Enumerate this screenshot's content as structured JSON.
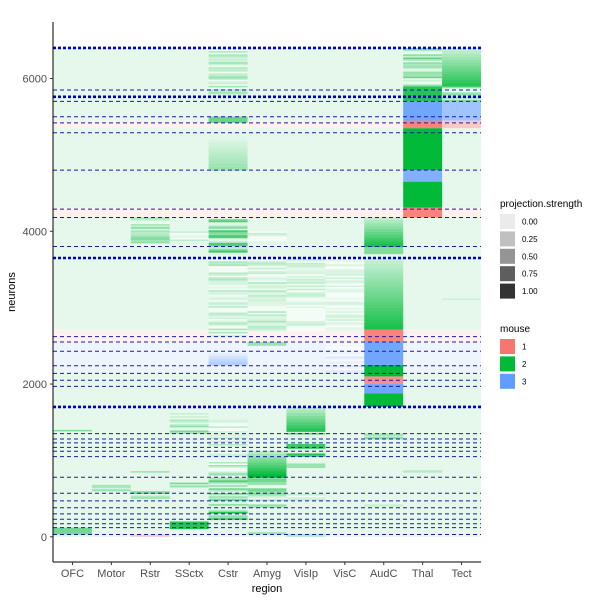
{
  "chart_data": {
    "type": "heatmap",
    "xlabel": "region",
    "ylabel": "neurons",
    "categories": [
      "OFC",
      "Motor",
      "Rstr",
      "SSctx",
      "Cstr",
      "Amyg",
      "VisIp",
      "VisC",
      "AudC",
      "Thal",
      "Tect"
    ],
    "y_ticks": [
      0,
      2000,
      4000,
      6000
    ],
    "y_tick_labels": [
      "0",
      "2000",
      "4000",
      "6000"
    ],
    "ylim": [
      -330,
      6740
    ],
    "n_neurons": 6400,
    "grid": false,
    "legend_position": "right",
    "legends": [
      {
        "title": "projection.strength",
        "entries": [
          {
            "label": "0.00",
            "color": "#ebebeb"
          },
          {
            "label": "0.25",
            "color": "#c0c0c0"
          },
          {
            "label": "0.50",
            "color": "#959595"
          },
          {
            "label": "0.75",
            "color": "#5e5e5e"
          },
          {
            "label": "1.00",
            "color": "#333333"
          }
        ]
      },
      {
        "title": "mouse",
        "entries": [
          {
            "label": "1",
            "color": "#f8766d"
          },
          {
            "label": "2",
            "color": "#00ba38"
          },
          {
            "label": "3",
            "color": "#619cff"
          }
        ]
      }
    ],
    "mouse_colors": {
      "1": "#f8766d",
      "2": "#00ba38",
      "3": "#619cff"
    },
    "background_tint": 0.1,
    "cluster_boundaries": [
      30,
      120,
      170,
      230,
      300,
      380,
      470,
      570,
      780,
      1050,
      1120,
      1170,
      1230,
      1280,
      1350,
      1700,
      1970,
      2050,
      2140,
      2240,
      2430,
      2550,
      2620,
      3650,
      3800,
      4180,
      4290,
      4800,
      5290,
      5420,
      5500,
      5700,
      5760,
      5850,
      6400
    ],
    "thick_boundaries": [
      1700,
      3650,
      5760,
      6400
    ],
    "mouse_bands": [
      {
        "from": 0,
        "to": 2140,
        "mouse": "2"
      },
      {
        "from": 2140,
        "to": 2550,
        "mouse": "3"
      },
      {
        "from": 2550,
        "to": 2720,
        "mouse": "1"
      },
      {
        "from": 2720,
        "to": 4180,
        "mouse": "2"
      },
      {
        "from": 4180,
        "to": 4310,
        "mouse": "1"
      },
      {
        "from": 4310,
        "to": 5350,
        "mouse": "2"
      },
      {
        "from": 5350,
        "to": 5450,
        "mouse": "1"
      },
      {
        "from": 5450,
        "to": 6400,
        "mouse": "2"
      }
    ],
    "blocks": [
      {
        "region": "OFC",
        "from": 30,
        "to": 120,
        "strength": 0.55,
        "mouse": "2",
        "style": "solid"
      },
      {
        "region": "OFC",
        "from": 1380,
        "to": 1400,
        "strength": 0.5,
        "mouse": "2",
        "style": "solid"
      },
      {
        "region": "Motor",
        "from": 600,
        "to": 680,
        "strength": 0.5,
        "mouse": "2",
        "style": "streak"
      },
      {
        "region": "Rstr",
        "from": 0,
        "to": 30,
        "strength": 0.4,
        "mouse": "1",
        "style": "solid"
      },
      {
        "region": "Rstr",
        "from": 500,
        "to": 600,
        "strength": 0.6,
        "mouse": "2",
        "style": "streak"
      },
      {
        "region": "Rstr",
        "from": 840,
        "to": 860,
        "strength": 0.4,
        "mouse": "2",
        "style": "solid"
      },
      {
        "region": "Rstr",
        "from": 3800,
        "to": 4180,
        "strength": 0.5,
        "mouse": "2",
        "style": "streak"
      },
      {
        "region": "SSctx",
        "from": 100,
        "to": 200,
        "strength": 0.85,
        "mouse": "2",
        "style": "solid"
      },
      {
        "region": "SSctx",
        "from": 650,
        "to": 730,
        "strength": 0.6,
        "mouse": "2",
        "style": "streak"
      },
      {
        "region": "SSctx",
        "from": 1350,
        "to": 1620,
        "strength": 0.6,
        "mouse": "2",
        "style": "streak"
      },
      {
        "region": "SSctx",
        "from": 3850,
        "to": 4000,
        "strength": 0.3,
        "mouse": "2",
        "style": "streak"
      },
      {
        "region": "Cstr",
        "from": 200,
        "to": 780,
        "strength": 0.9,
        "mouse": "2",
        "style": "streak"
      },
      {
        "region": "Cstr",
        "from": 780,
        "to": 1000,
        "strength": 0.4,
        "mouse": "2",
        "style": "streak"
      },
      {
        "region": "Cstr",
        "from": 1050,
        "to": 1550,
        "strength": 0.3,
        "mouse": "2",
        "style": "streak"
      },
      {
        "region": "Cstr",
        "from": 2250,
        "to": 2400,
        "strength": 0.5,
        "mouse": "3",
        "style": "fade"
      },
      {
        "region": "Cstr",
        "from": 2620,
        "to": 3650,
        "strength": 0.35,
        "mouse": "2",
        "style": "streak"
      },
      {
        "region": "Cstr",
        "from": 3700,
        "to": 4180,
        "strength": 0.8,
        "mouse": "2",
        "style": "streak"
      },
      {
        "region": "Cstr",
        "from": 4800,
        "to": 5250,
        "strength": 0.4,
        "mouse": "2",
        "style": "fade"
      },
      {
        "region": "Cstr",
        "from": 5420,
        "to": 5500,
        "strength": 0.6,
        "mouse": "2",
        "style": "solid"
      },
      {
        "region": "Cstr",
        "from": 5780,
        "to": 6400,
        "strength": 0.4,
        "mouse": "2",
        "style": "streak"
      },
      {
        "region": "Amyg",
        "from": 30,
        "to": 60,
        "strength": 0.4,
        "mouse": "2",
        "style": "solid"
      },
      {
        "region": "Amyg",
        "from": 380,
        "to": 470,
        "strength": 0.5,
        "mouse": "2",
        "style": "streak"
      },
      {
        "region": "Amyg",
        "from": 470,
        "to": 780,
        "strength": 0.6,
        "mouse": "2",
        "style": "streak"
      },
      {
        "region": "Amyg",
        "from": 780,
        "to": 1120,
        "strength": 1.0,
        "mouse": "2",
        "style": "fade"
      },
      {
        "region": "Amyg",
        "from": 2500,
        "to": 2550,
        "strength": 0.4,
        "mouse": "2",
        "style": "solid"
      },
      {
        "region": "Amyg",
        "from": 2700,
        "to": 3650,
        "strength": 0.35,
        "mouse": "2",
        "style": "streak"
      },
      {
        "region": "Amyg",
        "from": 3850,
        "to": 4000,
        "strength": 0.3,
        "mouse": "2",
        "style": "streak"
      },
      {
        "region": "VisIp",
        "from": 0,
        "to": 40,
        "strength": 0.3,
        "mouse": "2",
        "style": "solid"
      },
      {
        "region": "VisIp",
        "from": 480,
        "to": 560,
        "strength": 0.3,
        "mouse": "2",
        "style": "streak"
      },
      {
        "region": "VisIp",
        "from": 900,
        "to": 960,
        "strength": 0.4,
        "mouse": "2",
        "style": "solid"
      },
      {
        "region": "VisIp",
        "from": 1050,
        "to": 1380,
        "strength": 0.9,
        "mouse": "2",
        "style": "streak"
      },
      {
        "region": "VisIp",
        "from": 1380,
        "to": 1700,
        "strength": 0.85,
        "mouse": "2",
        "style": "fade"
      },
      {
        "region": "VisIp",
        "from": 2700,
        "to": 3650,
        "strength": 0.25,
        "mouse": "2",
        "style": "streak"
      },
      {
        "region": "VisC",
        "from": 2140,
        "to": 2550,
        "strength": 0.25,
        "mouse": "3",
        "style": "streak"
      },
      {
        "region": "VisC",
        "from": 2700,
        "to": 3650,
        "strength": 0.2,
        "mouse": "2",
        "style": "streak"
      },
      {
        "region": "AudC",
        "from": 400,
        "to": 470,
        "strength": 0.6,
        "mouse": "2",
        "style": "streak"
      },
      {
        "region": "AudC",
        "from": 1280,
        "to": 1350,
        "strength": 0.5,
        "mouse": "2",
        "style": "streak"
      },
      {
        "region": "AudC",
        "from": 1700,
        "to": 1880,
        "strength": 1.0,
        "mouse": "2",
        "style": "solid"
      },
      {
        "region": "AudC",
        "from": 1880,
        "to": 2000,
        "strength": 0.9,
        "mouse": "3",
        "style": "solid"
      },
      {
        "region": "AudC",
        "from": 2000,
        "to": 2100,
        "strength": 0.8,
        "mouse": "1",
        "style": "solid"
      },
      {
        "region": "AudC",
        "from": 2100,
        "to": 2250,
        "strength": 1.0,
        "mouse": "2",
        "style": "solid"
      },
      {
        "region": "AudC",
        "from": 2250,
        "to": 2550,
        "strength": 0.9,
        "mouse": "3",
        "style": "solid"
      },
      {
        "region": "AudC",
        "from": 2550,
        "to": 2720,
        "strength": 0.9,
        "mouse": "1",
        "style": "solid"
      },
      {
        "region": "AudC",
        "from": 2720,
        "to": 3650,
        "strength": 0.9,
        "mouse": "2",
        "style": "fade"
      },
      {
        "region": "AudC",
        "from": 3700,
        "to": 3800,
        "strength": 0.5,
        "mouse": "2",
        "style": "solid"
      },
      {
        "region": "AudC",
        "from": 3800,
        "to": 4180,
        "strength": 0.9,
        "mouse": "2",
        "style": "fade"
      },
      {
        "region": "Thal",
        "from": 840,
        "to": 870,
        "strength": 0.3,
        "mouse": "2",
        "style": "solid"
      },
      {
        "region": "Thal",
        "from": 4180,
        "to": 4310,
        "strength": 0.9,
        "mouse": "1",
        "style": "solid"
      },
      {
        "region": "Thal",
        "from": 4310,
        "to": 4650,
        "strength": 1.0,
        "mouse": "2",
        "style": "solid"
      },
      {
        "region": "Thal",
        "from": 4650,
        "to": 4800,
        "strength": 0.8,
        "mouse": "3",
        "style": "solid"
      },
      {
        "region": "Thal",
        "from": 4800,
        "to": 5350,
        "strength": 1.0,
        "mouse": "2",
        "style": "solid"
      },
      {
        "region": "Thal",
        "from": 5350,
        "to": 5450,
        "strength": 0.9,
        "mouse": "1",
        "style": "solid"
      },
      {
        "region": "Thal",
        "from": 5450,
        "to": 5700,
        "strength": 0.9,
        "mouse": "3",
        "style": "solid"
      },
      {
        "region": "Thal",
        "from": 5700,
        "to": 5900,
        "strength": 0.85,
        "mouse": "2",
        "style": "solid"
      },
      {
        "region": "Thal",
        "from": 5900,
        "to": 6400,
        "strength": 0.6,
        "mouse": "2",
        "style": "streak"
      },
      {
        "region": "Tect",
        "from": 3100,
        "to": 3120,
        "strength": 0.2,
        "mouse": "2",
        "style": "solid"
      },
      {
        "region": "Tect",
        "from": 5350,
        "to": 5450,
        "strength": 0.4,
        "mouse": "1",
        "style": "solid"
      },
      {
        "region": "Tect",
        "from": 5450,
        "to": 5700,
        "strength": 0.6,
        "mouse": "3",
        "style": "solid"
      },
      {
        "region": "Tect",
        "from": 5700,
        "to": 5900,
        "strength": 0.6,
        "mouse": "2",
        "style": "streak"
      },
      {
        "region": "Tect",
        "from": 5900,
        "to": 6400,
        "strength": 0.85,
        "mouse": "2",
        "style": "fade"
      }
    ]
  }
}
